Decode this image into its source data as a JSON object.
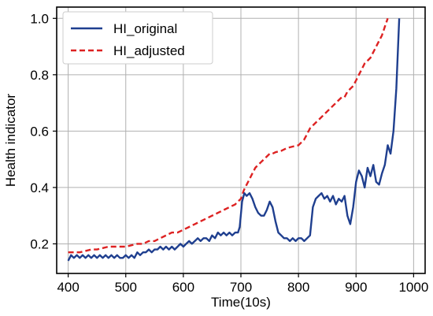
{
  "chart_data": {
    "type": "line",
    "xlabel": "Time(10s)",
    "ylabel": "Health indicator",
    "xlim": [
      380,
      1020
    ],
    "ylim": [
      0.095,
      1.04
    ],
    "xticks": [
      400,
      500,
      600,
      700,
      800,
      900,
      1000
    ],
    "yticks": [
      0.2,
      0.4,
      0.6,
      0.8,
      1.0
    ],
    "xtick_labels": [
      "400",
      "500",
      "600",
      "700",
      "800",
      "900",
      "1000"
    ],
    "ytick_labels": [
      "0.2",
      "0.4",
      "0.6",
      "0.8",
      "1.0"
    ],
    "grid": true,
    "legend_position": "top-left",
    "series": [
      {
        "name": "HI_original",
        "color": "#1f3f8f",
        "style": "solid",
        "x": [
          400,
          405,
          410,
          415,
          420,
          425,
          430,
          435,
          440,
          445,
          450,
          455,
          460,
          465,
          470,
          475,
          480,
          485,
          490,
          495,
          500,
          505,
          510,
          515,
          520,
          525,
          530,
          535,
          540,
          545,
          550,
          555,
          560,
          565,
          570,
          575,
          580,
          585,
          590,
          595,
          600,
          605,
          610,
          615,
          620,
          625,
          630,
          635,
          640,
          645,
          650,
          655,
          660,
          665,
          670,
          675,
          680,
          685,
          690,
          695,
          698,
          702,
          706,
          710,
          715,
          720,
          725,
          730,
          735,
          740,
          745,
          750,
          755,
          760,
          765,
          770,
          775,
          780,
          785,
          790,
          795,
          800,
          805,
          810,
          815,
          820,
          825,
          830,
          835,
          840,
          845,
          850,
          855,
          860,
          865,
          870,
          875,
          880,
          885,
          890,
          895,
          900,
          905,
          910,
          915,
          920,
          925,
          930,
          935,
          940,
          945,
          950,
          955,
          960,
          965,
          970,
          975
        ],
        "y": [
          0.14,
          0.16,
          0.15,
          0.16,
          0.15,
          0.16,
          0.15,
          0.16,
          0.15,
          0.16,
          0.15,
          0.16,
          0.15,
          0.16,
          0.15,
          0.16,
          0.15,
          0.16,
          0.15,
          0.15,
          0.16,
          0.15,
          0.16,
          0.15,
          0.17,
          0.16,
          0.17,
          0.17,
          0.18,
          0.17,
          0.18,
          0.18,
          0.19,
          0.18,
          0.19,
          0.18,
          0.19,
          0.18,
          0.19,
          0.2,
          0.19,
          0.2,
          0.21,
          0.2,
          0.21,
          0.22,
          0.21,
          0.22,
          0.22,
          0.21,
          0.23,
          0.22,
          0.24,
          0.23,
          0.24,
          0.23,
          0.24,
          0.23,
          0.24,
          0.24,
          0.26,
          0.35,
          0.38,
          0.37,
          0.38,
          0.36,
          0.33,
          0.31,
          0.3,
          0.3,
          0.32,
          0.35,
          0.33,
          0.28,
          0.24,
          0.23,
          0.22,
          0.22,
          0.21,
          0.22,
          0.21,
          0.22,
          0.22,
          0.21,
          0.22,
          0.23,
          0.33,
          0.36,
          0.37,
          0.38,
          0.36,
          0.37,
          0.35,
          0.37,
          0.34,
          0.36,
          0.35,
          0.37,
          0.3,
          0.27,
          0.33,
          0.42,
          0.46,
          0.44,
          0.4,
          0.47,
          0.44,
          0.48,
          0.42,
          0.41,
          0.45,
          0.48,
          0.55,
          0.52,
          0.6,
          0.75,
          1.0
        ]
      },
      {
        "name": "HI_adjusted",
        "color": "#dd2222",
        "style": "dashed",
        "x": [
          400,
          410,
          420,
          430,
          440,
          450,
          460,
          470,
          480,
          490,
          500,
          510,
          520,
          530,
          540,
          550,
          560,
          570,
          580,
          590,
          600,
          610,
          620,
          630,
          640,
          650,
          660,
          670,
          680,
          690,
          695,
          700,
          705,
          710,
          715,
          720,
          725,
          730,
          735,
          740,
          745,
          750,
          755,
          760,
          770,
          780,
          790,
          800,
          805,
          810,
          815,
          820,
          825,
          830,
          835,
          840,
          845,
          850,
          855,
          860,
          865,
          870,
          875,
          880,
          885,
          890,
          895,
          900,
          905,
          910,
          915,
          920,
          925,
          930,
          935,
          940,
          945,
          950,
          955
        ],
        "y": [
          0.17,
          0.17,
          0.17,
          0.175,
          0.18,
          0.18,
          0.185,
          0.19,
          0.19,
          0.19,
          0.19,
          0.195,
          0.2,
          0.2,
          0.21,
          0.21,
          0.22,
          0.23,
          0.24,
          0.24,
          0.25,
          0.26,
          0.27,
          0.28,
          0.29,
          0.3,
          0.31,
          0.32,
          0.33,
          0.34,
          0.35,
          0.36,
          0.39,
          0.41,
          0.43,
          0.45,
          0.47,
          0.48,
          0.49,
          0.5,
          0.51,
          0.52,
          0.52,
          0.525,
          0.53,
          0.54,
          0.545,
          0.55,
          0.56,
          0.57,
          0.59,
          0.61,
          0.62,
          0.63,
          0.64,
          0.65,
          0.66,
          0.67,
          0.68,
          0.69,
          0.7,
          0.71,
          0.72,
          0.72,
          0.74,
          0.75,
          0.76,
          0.78,
          0.8,
          0.82,
          0.84,
          0.85,
          0.86,
          0.88,
          0.9,
          0.92,
          0.94,
          0.97,
          1.0
        ]
      }
    ]
  }
}
